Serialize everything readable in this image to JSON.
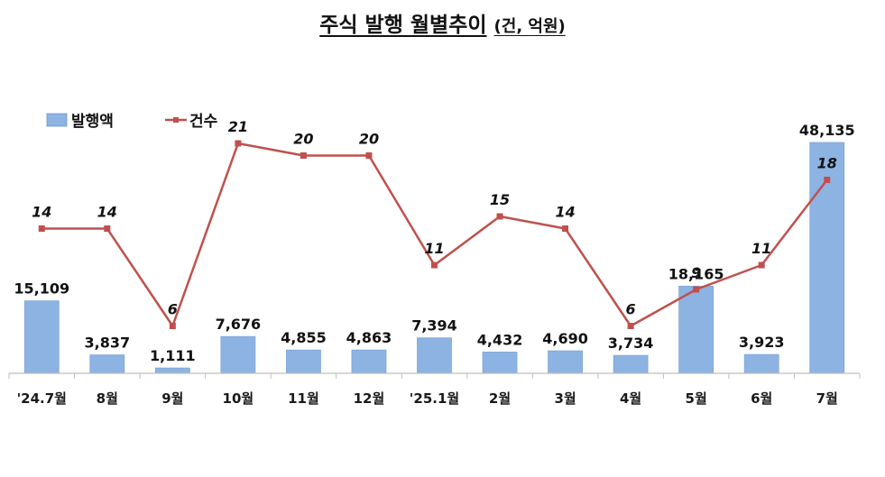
{
  "title": "주식 발행 월별추이",
  "unit": "(건, 억원)",
  "chart_data": {
    "type": "bar",
    "title": "주식 발행 월별추이",
    "unit": "(건, 억원)",
    "categories": [
      "'24.7월",
      "8월",
      "9월",
      "10월",
      "11월",
      "12월",
      "'25.1월",
      "2월",
      "3월",
      "4월",
      "5월",
      "6월",
      "7월"
    ],
    "series": [
      {
        "name": "발행액",
        "type": "bar",
        "axis": "left",
        "color": "#8DB3E2",
        "values": [
          15109,
          3837,
          1111,
          7676,
          4855,
          4863,
          7394,
          4432,
          4690,
          3734,
          18165,
          3923,
          48135
        ],
        "labels": [
          "15,109",
          "3,837",
          "1,111",
          "7,676",
          "4,855",
          "4,863",
          "7,394",
          "4,432",
          "4,690",
          "3,734",
          "18,165",
          "3,923",
          "48,135"
        ]
      },
      {
        "name": "건수",
        "type": "line",
        "axis": "right",
        "color": "#C0504D",
        "values": [
          14,
          14,
          6,
          21,
          20,
          20,
          11,
          15,
          14,
          6,
          9,
          11,
          18
        ],
        "labels": [
          "14",
          "14",
          "6",
          "21",
          "20",
          "20",
          "11",
          "15",
          "14",
          "6",
          "9",
          "11",
          "18"
        ]
      }
    ],
    "legend": {
      "position": "top-left"
    },
    "grid": false
  }
}
